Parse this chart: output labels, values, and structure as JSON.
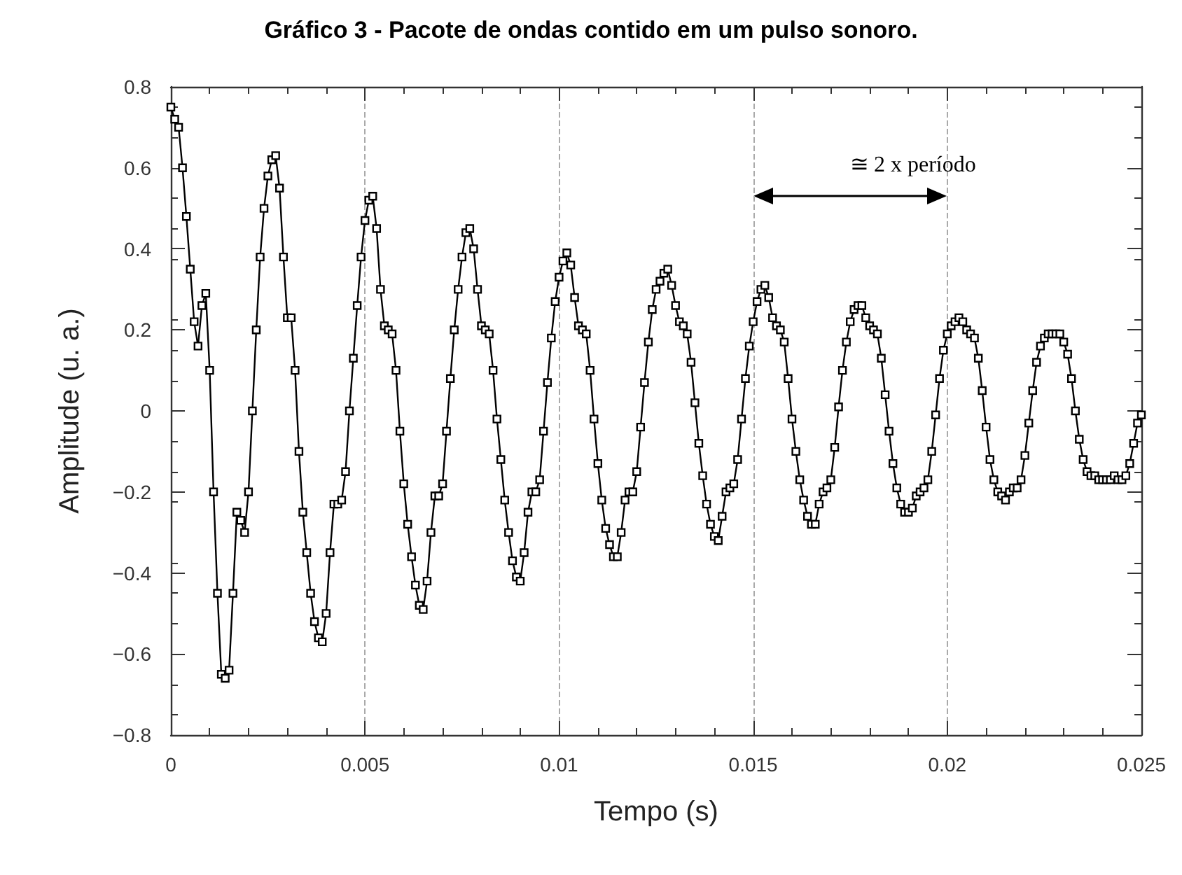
{
  "chart_data": {
    "type": "line",
    "title": "Gráfico 3 - Pacote de ondas contido em um pulso sonoro.",
    "xlabel": "Tempo (s)",
    "ylabel": "Amplitude (u. a.)",
    "xlim": [
      0,
      0.025
    ],
    "xticks": [
      0,
      0.005,
      0.01,
      0.015,
      0.02,
      0.025
    ],
    "ylim": [
      -0.8,
      0.8
    ],
    "yticks": [
      -0.8,
      -0.6,
      -0.4,
      -0.2,
      0,
      0.2,
      0.4,
      0.6,
      0.8
    ],
    "grid": "x",
    "marker": "square",
    "line_style": "solid",
    "annotations": [
      "≅ 2 x período"
    ],
    "x": [
      0,
      0.0001,
      0.0002,
      0.0003,
      0.0004,
      0.0005,
      0.0006,
      0.0007,
      0.0008,
      0.0009,
      0.001,
      0.0011,
      0.0012,
      0.0013,
      0.0014,
      0.0015,
      0.0016,
      0.0017,
      0.0018,
      0.0019,
      0.002,
      0.0021,
      0.0022,
      0.0023,
      0.0024,
      0.0025,
      0.0026,
      0.0027,
      0.0028,
      0.0029,
      0.003,
      0.0031,
      0.0032,
      0.0033,
      0.0034,
      0.0035,
      0.0036,
      0.0037,
      0.0038,
      0.0039,
      0.004,
      0.0041,
      0.0042,
      0.0043,
      0.0044,
      0.0045,
      0.0046,
      0.0047,
      0.0048,
      0.0049,
      0.005,
      0.0051,
      0.0052,
      0.0053,
      0.0054,
      0.0055,
      0.0056,
      0.0057,
      0.0058,
      0.0059,
      0.006,
      0.0061,
      0.0062,
      0.0063,
      0.0064,
      0.0065,
      0.0066,
      0.0067,
      0.0068,
      0.0069,
      0.007,
      0.0071,
      0.0072,
      0.0073,
      0.0074,
      0.0075,
      0.0076,
      0.0077,
      0.0078,
      0.0079,
      0.008,
      0.0081,
      0.0082,
      0.0083,
      0.0084,
      0.0085,
      0.0086,
      0.0087,
      0.0088,
      0.0089,
      0.009,
      0.0091,
      0.0092,
      0.0093,
      0.0094,
      0.0095,
      0.0096,
      0.0097,
      0.0098,
      0.0099,
      0.01,
      0.0101,
      0.0102,
      0.0103,
      0.0104,
      0.0105,
      0.0106,
      0.0107,
      0.0108,
      0.0109,
      0.011,
      0.0111,
      0.0112,
      0.0113,
      0.0114,
      0.0115,
      0.0116,
      0.0117,
      0.0118,
      0.0119,
      0.012,
      0.0121,
      0.0122,
      0.0123,
      0.0124,
      0.0125,
      0.0126,
      0.0127,
      0.0128,
      0.0129,
      0.013,
      0.0131,
      0.0132,
      0.0133,
      0.0134,
      0.0135,
      0.0136,
      0.0137,
      0.0138,
      0.0139,
      0.014,
      0.0141,
      0.0142,
      0.0143,
      0.0144,
      0.0145,
      0.0146,
      0.0147,
      0.0148,
      0.0149,
      0.015,
      0.0151,
      0.0152,
      0.0153,
      0.0154,
      0.0155,
      0.0156,
      0.0157,
      0.0158,
      0.0159,
      0.016,
      0.0161,
      0.0162,
      0.0163,
      0.0164,
      0.0165,
      0.0166,
      0.0167,
      0.0168,
      0.0169,
      0.017,
      0.0171,
      0.0172,
      0.0173,
      0.0174,
      0.0175,
      0.0176,
      0.0177,
      0.0178,
      0.0179,
      0.018,
      0.0181,
      0.0182,
      0.0183,
      0.0184,
      0.0185,
      0.0186,
      0.0187,
      0.0188,
      0.0189,
      0.019,
      0.0191,
      0.0192,
      0.0193,
      0.0194,
      0.0195,
      0.0196,
      0.0197,
      0.0198,
      0.0199,
      0.02,
      0.0201,
      0.0202,
      0.0203,
      0.0204,
      0.0205,
      0.0206,
      0.0207,
      0.0208,
      0.0209,
      0.021,
      0.0211,
      0.0212,
      0.0213,
      0.0214,
      0.0215,
      0.0216,
      0.0217,
      0.0218,
      0.0219,
      0.022,
      0.0221,
      0.0222,
      0.0223,
      0.0224,
      0.0225,
      0.0226,
      0.0227,
      0.0228,
      0.0229,
      0.023,
      0.0231,
      0.0232,
      0.0233,
      0.0234,
      0.0235,
      0.0236,
      0.0237,
      0.0238,
      0.0239,
      0.024,
      0.0241,
      0.0242,
      0.0243,
      0.0244,
      0.0245,
      0.0246,
      0.0247,
      0.0248,
      0.0249,
      0.025
    ],
    "series": [
      {
        "color": "#000000",
        "values": [
          0.75,
          0.72,
          0.7,
          0.6,
          0.48,
          0.35,
          0.22,
          0.16,
          0.26,
          0.29,
          0.1,
          -0.2,
          -0.45,
          -0.65,
          -0.66,
          -0.64,
          -0.45,
          -0.25,
          -0.27,
          -0.3,
          -0.2,
          0,
          0.2,
          0.38,
          0.5,
          0.58,
          0.62,
          0.63,
          0.55,
          0.38,
          0.23,
          0.23,
          0.1,
          -0.1,
          -0.25,
          -0.35,
          -0.45,
          -0.52,
          -0.56,
          -0.57,
          -0.5,
          -0.35,
          -0.23,
          -0.23,
          -0.22,
          -0.15,
          0,
          0.13,
          0.26,
          0.38,
          0.47,
          0.52,
          0.53,
          0.45,
          0.3,
          0.21,
          0.2,
          0.19,
          0.1,
          -0.05,
          -0.18,
          -0.28,
          -0.36,
          -0.43,
          -0.48,
          -0.49,
          -0.42,
          -0.3,
          -0.21,
          -0.21,
          -0.18,
          -0.05,
          0.08,
          0.2,
          0.3,
          0.38,
          0.44,
          0.45,
          0.4,
          0.3,
          0.21,
          0.2,
          0.19,
          0.1,
          -0.02,
          -0.12,
          -0.22,
          -0.3,
          -0.37,
          -0.41,
          -0.42,
          -0.35,
          -0.25,
          -0.2,
          -0.2,
          -0.17,
          -0.05,
          0.07,
          0.18,
          0.27,
          0.33,
          0.37,
          0.39,
          0.36,
          0.28,
          0.21,
          0.2,
          0.19,
          0.1,
          -0.02,
          -0.13,
          -0.22,
          -0.29,
          -0.33,
          -0.36,
          -0.36,
          -0.3,
          -0.22,
          -0.2,
          -0.2,
          -0.15,
          -0.04,
          0.07,
          0.17,
          0.25,
          0.3,
          0.32,
          0.34,
          0.35,
          0.31,
          0.26,
          0.22,
          0.21,
          0.19,
          0.12,
          0.02,
          -0.08,
          -0.16,
          -0.23,
          -0.28,
          -0.31,
          -0.32,
          -0.26,
          -0.2,
          -0.19,
          -0.18,
          -0.12,
          -0.02,
          0.08,
          0.16,
          0.22,
          0.27,
          0.3,
          0.31,
          0.28,
          0.23,
          0.21,
          0.2,
          0.17,
          0.08,
          -0.02,
          -0.1,
          -0.17,
          -0.22,
          -0.26,
          -0.28,
          -0.28,
          -0.23,
          -0.2,
          -0.19,
          -0.17,
          -0.09,
          0.01,
          0.1,
          0.17,
          0.22,
          0.25,
          0.26,
          0.26,
          0.23,
          0.21,
          0.2,
          0.19,
          0.13,
          0.04,
          -0.05,
          -0.13,
          -0.19,
          -0.23,
          -0.25,
          -0.25,
          -0.24,
          -0.21,
          -0.2,
          -0.19,
          -0.17,
          -0.1,
          -0.01,
          0.08,
          0.15,
          0.19,
          0.21,
          0.22,
          0.23,
          0.22,
          0.2,
          0.19,
          0.18,
          0.13,
          0.05,
          -0.04,
          -0.12,
          -0.17,
          -0.2,
          -0.21,
          -0.22,
          -0.2,
          -0.19,
          -0.19,
          -0.17,
          -0.11,
          -0.03,
          0.05,
          0.12,
          0.16,
          0.18,
          0.19,
          0.19,
          0.19,
          0.19,
          0.17,
          0.14,
          0.08,
          0,
          -0.07,
          -0.12,
          -0.15,
          -0.16,
          -0.16,
          -0.17,
          -0.17,
          -0.17,
          -0.17,
          -0.16,
          -0.17,
          -0.17,
          -0.16,
          -0.13,
          -0.08,
          -0.03,
          -0.01
        ]
      }
    ]
  }
}
